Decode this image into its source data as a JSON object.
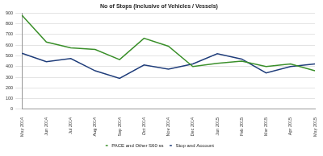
{
  "chart_data": {
    "type": "line",
    "title": "No of Stops (Inclusive of Vehicles / Vessels)",
    "categories": [
      "May 2014",
      "Jun 2014",
      "Jul 2014",
      "Aug 2014",
      "Sep 2014",
      "Oct 2014",
      "Nov 2014",
      "Dec 2014",
      "Jan 2015",
      "Feb 2015",
      "Mar 2015",
      "Apr 2015",
      "May 2015"
    ],
    "series": [
      {
        "name": "PACE and Other S60 ss",
        "color": "#3a8f2a",
        "marker": "none",
        "values": [
          880,
          630,
          575,
          560,
          465,
          665,
          590,
          400,
          430,
          450,
          400,
          425,
          360
        ]
      },
      {
        "name": "Stop and Account",
        "color": "#1f3d7a",
        "marker": "none",
        "values": [
          525,
          445,
          475,
          360,
          290,
          415,
          375,
          425,
          520,
          470,
          340,
          400,
          425
        ]
      }
    ],
    "ylim": [
      0,
      900
    ],
    "yticks": [
      0,
      100,
      200,
      300,
      400,
      500,
      600,
      700,
      800,
      900
    ],
    "grid": true,
    "legend": "bottom"
  }
}
